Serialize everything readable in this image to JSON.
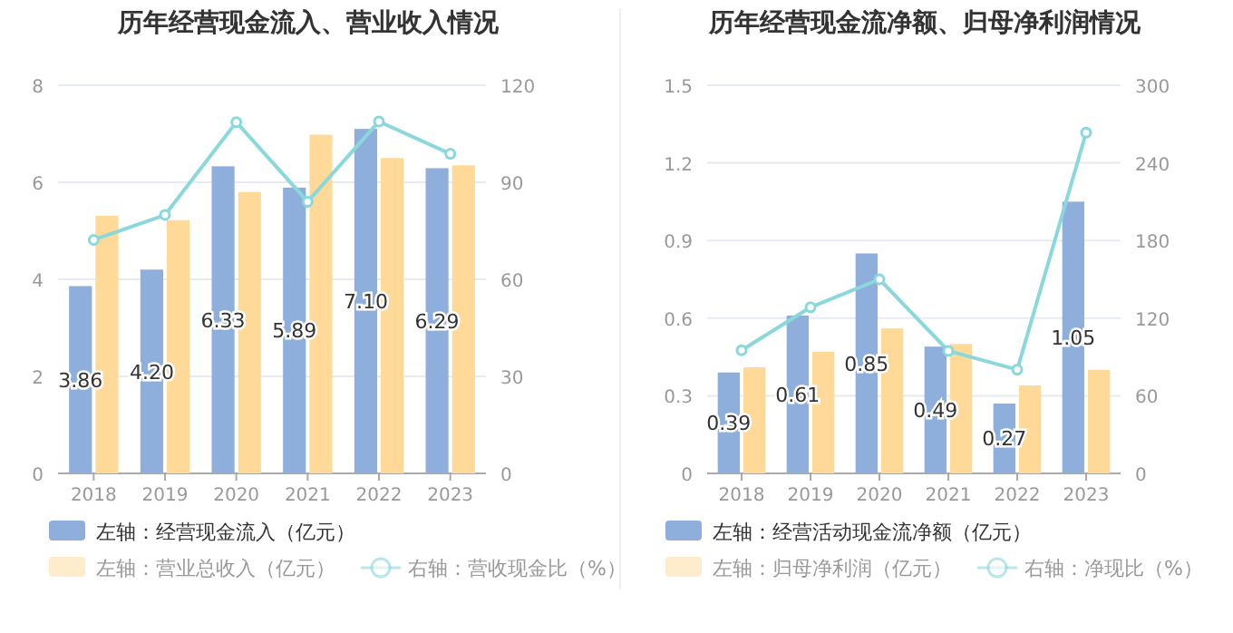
{
  "chart_data": [
    {
      "type": "bar",
      "title": "历年经营现金流入、营业收入情况",
      "categories": [
        "2018",
        "2019",
        "2020",
        "2021",
        "2022",
        "2023"
      ],
      "series": [
        {
          "name": "左轴：经营现金流入（亿元）",
          "color": "#8eaedb",
          "values": [
            3.86,
            4.2,
            6.33,
            5.89,
            7.1,
            6.29
          ],
          "value_labels": [
            "3.86",
            "4.20",
            "6.33",
            "5.89",
            "7.10",
            "6.29"
          ]
        },
        {
          "name": "左轴：营业总收入（亿元）",
          "color": "#ffd997",
          "values": [
            5.31,
            5.22,
            5.8,
            6.98,
            6.5,
            6.35
          ]
        },
        {
          "name": "右轴：营收现金比（%）",
          "type": "line",
          "axis": "y2",
          "color": "#8ad8dc",
          "marker": "circle",
          "values": [
            72.2,
            79.9,
            108.6,
            84.0,
            108.8,
            98.8
          ]
        }
      ],
      "ylim": [
        0,
        8
      ],
      "yticks": [
        0,
        2,
        4,
        6,
        8
      ],
      "y2lim": [
        0,
        120
      ],
      "y2ticks": [
        0,
        30,
        60,
        90,
        120
      ],
      "grid": "y",
      "legend": "bottom"
    },
    {
      "type": "bar",
      "title": "历年经营现金流净额、归母净利润情况",
      "categories": [
        "2018",
        "2019",
        "2020",
        "2021",
        "2022",
        "2023"
      ],
      "series": [
        {
          "name": "左轴：经营活动现金流净额（亿元）",
          "color": "#8eaedb",
          "values": [
            0.39,
            0.61,
            0.85,
            0.49,
            0.27,
            1.05
          ],
          "value_labels": [
            "0.39",
            "0.61",
            "0.85",
            "0.49",
            "0.27",
            "1.05"
          ]
        },
        {
          "name": "左轴：归母净利润（亿元）",
          "color": "#ffd997",
          "values": [
            0.41,
            0.47,
            0.56,
            0.5,
            0.34,
            0.4
          ]
        },
        {
          "name": "右轴：净现比（%）",
          "type": "line",
          "axis": "y2",
          "color": "#8ad8dc",
          "marker": "circle",
          "values": [
            95.2,
            128.4,
            150.0,
            94.7,
            80.2,
            263.4
          ]
        }
      ],
      "ylim": [
        0,
        1.5
      ],
      "yticks": [
        0,
        0.3,
        0.6,
        0.9,
        1.2,
        1.5
      ],
      "y2lim": [
        0,
        300
      ],
      "y2ticks": [
        0,
        60,
        120,
        180,
        240,
        300
      ],
      "grid": "y",
      "legend": "bottom"
    }
  ]
}
